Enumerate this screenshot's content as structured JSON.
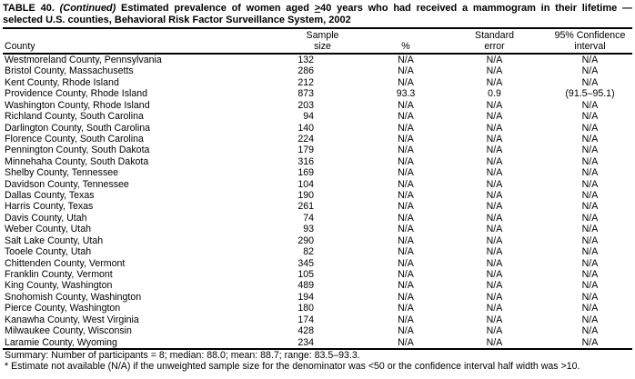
{
  "title": {
    "label": "TABLE 40.",
    "continued": "(Continued)",
    "line1_rest": "Estimated prevalence of women aged",
    "geq_symbol": ">",
    "line1_end": "40 years who had received a mammogram in their lifetime —",
    "line2": "selected U.S. counties, Behavioral Risk Factor Surveillance System, 2002"
  },
  "table": {
    "columns": [
      {
        "id": "county",
        "line1": "",
        "line2": "County"
      },
      {
        "id": "sample_size",
        "line1": "Sample",
        "line2": "size"
      },
      {
        "id": "percent",
        "line1": "",
        "line2": "%"
      },
      {
        "id": "standard_error",
        "line1": "Standard",
        "line2": "error"
      },
      {
        "id": "confidence_interval",
        "line1": "95% Confidence",
        "line2": "interval"
      }
    ],
    "rows": [
      {
        "county": "Westmoreland County, Pennsylvania",
        "sample_size": "132",
        "percent": "N/A",
        "standard_error": "N/A",
        "confidence_interval": "N/A"
      },
      {
        "county": "Bristol County, Massachusetts",
        "sample_size": "286",
        "percent": "N/A",
        "standard_error": "N/A",
        "confidence_interval": "N/A"
      },
      {
        "county": "Kent County, Rhode Island",
        "sample_size": "212",
        "percent": "N/A",
        "standard_error": "N/A",
        "confidence_interval": "N/A"
      },
      {
        "county": "Providence County, Rhode Island",
        "sample_size": "873",
        "percent": "93.3",
        "standard_error": "0.9",
        "confidence_interval": "(91.5–95.1)"
      },
      {
        "county": "Washington County, Rhode Island",
        "sample_size": "203",
        "percent": "N/A",
        "standard_error": "N/A",
        "confidence_interval": "N/A"
      },
      {
        "county": "Richland County, South Carolina",
        "sample_size": "94",
        "percent": "N/A",
        "standard_error": "N/A",
        "confidence_interval": "N/A"
      },
      {
        "county": "Darlington County, South Carolina",
        "sample_size": "140",
        "percent": "N/A",
        "standard_error": "N/A",
        "confidence_interval": "N/A"
      },
      {
        "county": "Florence County, South Carolina",
        "sample_size": "224",
        "percent": "N/A",
        "standard_error": "N/A",
        "confidence_interval": "N/A"
      },
      {
        "county": "Pennington County, South Dakota",
        "sample_size": "179",
        "percent": "N/A",
        "standard_error": "N/A",
        "confidence_interval": "N/A"
      },
      {
        "county": "Minnehaha County, South Dakota",
        "sample_size": "316",
        "percent": "N/A",
        "standard_error": "N/A",
        "confidence_interval": "N/A"
      },
      {
        "county": "Shelby County, Tennessee",
        "sample_size": "169",
        "percent": "N/A",
        "standard_error": "N/A",
        "confidence_interval": "N/A"
      },
      {
        "county": "Davidson County, Tennessee",
        "sample_size": "104",
        "percent": "N/A",
        "standard_error": "N/A",
        "confidence_interval": "N/A"
      },
      {
        "county": "Dallas County, Texas",
        "sample_size": "190",
        "percent": "N/A",
        "standard_error": "N/A",
        "confidence_interval": "N/A"
      },
      {
        "county": "Harris County, Texas",
        "sample_size": "261",
        "percent": "N/A",
        "standard_error": "N/A",
        "confidence_interval": "N/A"
      },
      {
        "county": "Davis County, Utah",
        "sample_size": "74",
        "percent": "N/A",
        "standard_error": "N/A",
        "confidence_interval": "N/A"
      },
      {
        "county": "Weber County, Utah",
        "sample_size": "93",
        "percent": "N/A",
        "standard_error": "N/A",
        "confidence_interval": "N/A"
      },
      {
        "county": "Salt Lake County, Utah",
        "sample_size": "290",
        "percent": "N/A",
        "standard_error": "N/A",
        "confidence_interval": "N/A"
      },
      {
        "county": "Tooele County, Utah",
        "sample_size": "82",
        "percent": "N/A",
        "standard_error": "N/A",
        "confidence_interval": "N/A"
      },
      {
        "county": "Chittenden County, Vermont",
        "sample_size": "345",
        "percent": "N/A",
        "standard_error": "N/A",
        "confidence_interval": "N/A"
      },
      {
        "county": "Franklin County, Vermont",
        "sample_size": "105",
        "percent": "N/A",
        "standard_error": "N/A",
        "confidence_interval": "N/A"
      },
      {
        "county": "King County, Washington",
        "sample_size": "489",
        "percent": "N/A",
        "standard_error": "N/A",
        "confidence_interval": "N/A"
      },
      {
        "county": "Snohomish County, Washington",
        "sample_size": "194",
        "percent": "N/A",
        "standard_error": "N/A",
        "confidence_interval": "N/A"
      },
      {
        "county": "Pierce County, Washington",
        "sample_size": "180",
        "percent": "N/A",
        "standard_error": "N/A",
        "confidence_interval": "N/A"
      },
      {
        "county": "Kanawha County, West Virginia",
        "sample_size": "174",
        "percent": "N/A",
        "standard_error": "N/A",
        "confidence_interval": "N/A"
      },
      {
        "county": "Milwaukee County, Wisconsin",
        "sample_size": "428",
        "percent": "N/A",
        "standard_error": "N/A",
        "confidence_interval": "N/A"
      },
      {
        "county": "Laramie County, Wyoming",
        "sample_size": "234",
        "percent": "N/A",
        "standard_error": "N/A",
        "confidence_interval": "N/A"
      }
    ]
  },
  "summary": "Summary: Number of participants = 8; median: 88.0; mean: 88.7; range: 83.5–93.3.",
  "footnote": "* Estimate not available (N/A) if the unweighted sample size for the denominator was <50 or the confidence interval half width was >10."
}
